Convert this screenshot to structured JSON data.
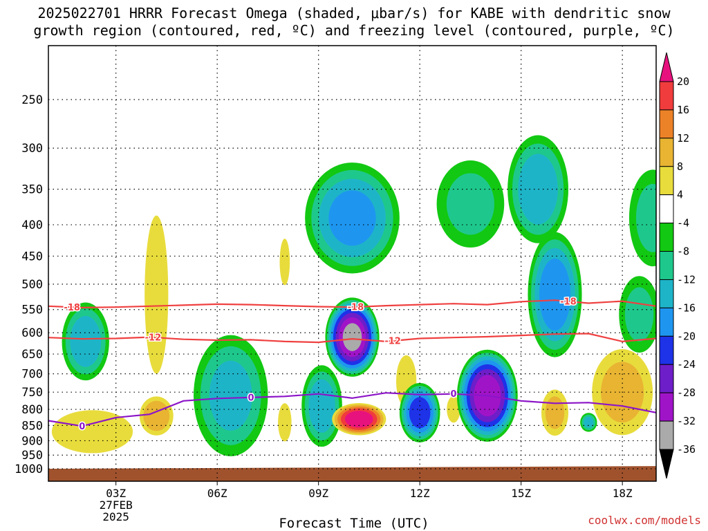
{
  "chart_data": {
    "type": "heatmap",
    "title_line1": "2025022701 HRRR Forecast Omega (shaded, μbar/s) for KABE with dendritic snow",
    "title_line2": "growth region (contoured, red, ºC) and freezing level (contoured, purple, ºC)",
    "xlabel": "Forecast Time (UTC)",
    "credit": "coolwx.com/models",
    "y_axis": {
      "label": "",
      "scale": "log-pressure",
      "range": [
        1000,
        200
      ],
      "ticks": [
        250,
        300,
        350,
        400,
        450,
        500,
        550,
        600,
        650,
        700,
        750,
        800,
        850,
        900,
        950,
        1000
      ]
    },
    "x_axis": {
      "range_hours": [
        1,
        19
      ],
      "ticks": [
        {
          "hour": 3,
          "lines": [
            "03Z",
            "27FEB",
            "2025"
          ]
        },
        {
          "hour": 6,
          "lines": [
            "06Z"
          ]
        },
        {
          "hour": 9,
          "lines": [
            "09Z"
          ]
        },
        {
          "hour": 12,
          "lines": [
            "12Z"
          ]
        },
        {
          "hour": 15,
          "lines": [
            "15Z"
          ]
        },
        {
          "hour": 18,
          "lines": [
            "18Z"
          ]
        }
      ]
    },
    "colorbar": {
      "labels": [
        "20",
        "16",
        "12",
        "8",
        "4",
        "-4",
        "-8",
        "-12",
        "-16",
        "-20",
        "-24",
        "-28",
        "-32",
        "-36"
      ],
      "colors": [
        "#e8127e",
        "#f03c3c",
        "#ec8228",
        "#e8b432",
        "#e8dc3c",
        "#ffffff",
        "#12c812",
        "#1ec88c",
        "#1eb4c8",
        "#1e96f0",
        "#1e32e8",
        "#6e1ec8",
        "#a014c8",
        "#aaaaaa",
        "#000000"
      ]
    },
    "isotherms": [
      {
        "name": "-18",
        "color": "#f04040",
        "points": [
          [
            1,
            543
          ],
          [
            2,
            546
          ],
          [
            3,
            545
          ],
          [
            4,
            543
          ],
          [
            5,
            541
          ],
          [
            6,
            539
          ],
          [
            7,
            540
          ],
          [
            8,
            542
          ],
          [
            9,
            544
          ],
          [
            10,
            545
          ],
          [
            11,
            542
          ],
          [
            12,
            540
          ],
          [
            13,
            538
          ],
          [
            14,
            540
          ],
          [
            15,
            534
          ],
          [
            16,
            531
          ],
          [
            17,
            537
          ],
          [
            18,
            533
          ],
          [
            19,
            543
          ]
        ],
        "labels": [
          [
            1.7,
            "-18"
          ],
          [
            10.1,
            "-18"
          ],
          [
            16.4,
            "-18"
          ]
        ]
      },
      {
        "name": "-12",
        "color": "#f04040",
        "points": [
          [
            1,
            611
          ],
          [
            2,
            614
          ],
          [
            3,
            613
          ],
          [
            4,
            610
          ],
          [
            5,
            615
          ],
          [
            6,
            617
          ],
          [
            7,
            616
          ],
          [
            8,
            620
          ],
          [
            9,
            622
          ],
          [
            10,
            614
          ],
          [
            11,
            620
          ],
          [
            12,
            613
          ],
          [
            13,
            611
          ],
          [
            14,
            609
          ],
          [
            15,
            606
          ],
          [
            16,
            603
          ],
          [
            17,
            602
          ],
          [
            18,
            620
          ],
          [
            19,
            613
          ]
        ],
        "labels": [
          [
            4.1,
            "-12"
          ],
          [
            11.2,
            "-12"
          ]
        ]
      },
      {
        "name": "0",
        "color": "#8c14c8",
        "points": [
          [
            1,
            835
          ],
          [
            2,
            852
          ],
          [
            3,
            825
          ],
          [
            4,
            815
          ],
          [
            5,
            775
          ],
          [
            6,
            768
          ],
          [
            7,
            765
          ],
          [
            8,
            762
          ],
          [
            9,
            755
          ],
          [
            10,
            767
          ],
          [
            11,
            752
          ],
          [
            12,
            757
          ],
          [
            13,
            755
          ],
          [
            14,
            760
          ],
          [
            15,
            775
          ],
          [
            16,
            782
          ],
          [
            17,
            780
          ],
          [
            18,
            790
          ],
          [
            19,
            810
          ]
        ],
        "labels": [
          [
            2,
            "0"
          ],
          [
            7,
            "0"
          ],
          [
            13,
            "0"
          ]
        ]
      }
    ],
    "omega_blobs": [
      {
        "hour": 2.1,
        "p": 620,
        "rh": 0.7,
        "rp": 90,
        "v": -14
      },
      {
        "hour": 2.3,
        "p": 870,
        "rh": 1.2,
        "rp": 70,
        "v": 6
      },
      {
        "hour": 4.2,
        "p": 520,
        "rh": 0.35,
        "rp": 150,
        "v": 5
      },
      {
        "hour": 4.2,
        "p": 820,
        "rh": 0.5,
        "rp": 60,
        "v": 10
      },
      {
        "hour": 6.4,
        "p": 760,
        "rh": 1.1,
        "rp": 170,
        "v": -12
      },
      {
        "hour": 8.0,
        "p": 840,
        "rh": 0.2,
        "rp": 60,
        "v": 6
      },
      {
        "hour": 8.0,
        "p": 460,
        "rh": 0.15,
        "rp": 40,
        "v": 5
      },
      {
        "hour": 9.1,
        "p": 790,
        "rh": 0.6,
        "rp": 120,
        "v": -14
      },
      {
        "hour": 10.0,
        "p": 390,
        "rh": 1.4,
        "rp": 80,
        "v": -16
      },
      {
        "hour": 10.0,
        "p": 610,
        "rh": 0.8,
        "rp": 90,
        "v": -32
      },
      {
        "hour": 10.2,
        "p": 830,
        "rh": 0.8,
        "rp": 50,
        "v": 22
      },
      {
        "hour": 11.6,
        "p": 720,
        "rh": 0.3,
        "rp": 70,
        "v": 6
      },
      {
        "hour": 12.0,
        "p": 810,
        "rh": 0.6,
        "rp": 90,
        "v": -22
      },
      {
        "hour": 13.5,
        "p": 370,
        "rh": 1.0,
        "rp": 60,
        "v": -8
      },
      {
        "hour": 13.0,
        "p": 800,
        "rh": 0.2,
        "rp": 40,
        "v": 6
      },
      {
        "hour": 14.0,
        "p": 760,
        "rh": 0.9,
        "rp": 130,
        "v": -30
      },
      {
        "hour": 15.5,
        "p": 350,
        "rh": 0.9,
        "rp": 70,
        "v": -14
      },
      {
        "hour": 16.0,
        "p": 520,
        "rh": 0.8,
        "rp": 120,
        "v": -18
      },
      {
        "hour": 16.0,
        "p": 810,
        "rh": 0.4,
        "rp": 70,
        "v": 8
      },
      {
        "hour": 17.0,
        "p": 840,
        "rh": 0.25,
        "rp": 30,
        "v": -12
      },
      {
        "hour": 18.0,
        "p": 750,
        "rh": 0.9,
        "rp": 120,
        "v": 8
      },
      {
        "hour": 18.9,
        "p": 390,
        "rh": 0.7,
        "rp": 70,
        "v": -8
      },
      {
        "hour": 18.5,
        "p": 560,
        "rh": 0.6,
        "rp": 80,
        "v": -8
      }
    ],
    "terrain": {
      "label": "surface",
      "color": "#a0522d",
      "pressure_start": 1000,
      "pressure_end": 990
    },
    "grid": true
  }
}
